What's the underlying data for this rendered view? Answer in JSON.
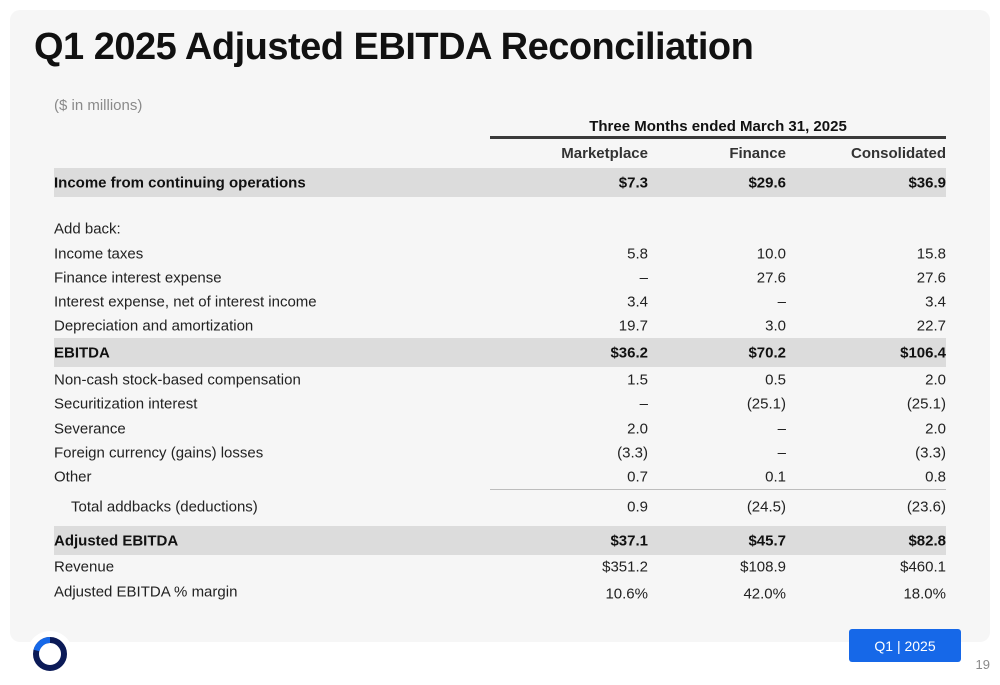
{
  "title": "Q1 2025 Adjusted EBITDA Reconciliation",
  "units": "($ in millions)",
  "period_header": "Three Months ended March 31, 2025",
  "columns": [
    "Marketplace",
    "Finance",
    "Consolidated"
  ],
  "rows": {
    "income": {
      "label": "Income from continuing operations",
      "values": [
        "$7.3",
        "$29.6",
        "$36.9"
      ]
    },
    "add_back": {
      "label": "Add back:"
    },
    "income_taxes": {
      "label": "Income taxes",
      "values": [
        "5.8",
        "10.0",
        "15.8"
      ]
    },
    "finance_interest": {
      "label": "Finance interest expense",
      "values": [
        "–",
        "27.6",
        "27.6"
      ]
    },
    "interest_expense": {
      "label": "Interest expense, net of interest income",
      "values": [
        "3.4",
        "–",
        "3.4"
      ]
    },
    "depreciation": {
      "label": "Depreciation and amortization",
      "values": [
        "19.7",
        "3.0",
        "22.7"
      ]
    },
    "ebitda": {
      "label": "EBITDA",
      "values": [
        "$36.2",
        "$70.2",
        "$106.4"
      ]
    },
    "stock_comp": {
      "label": "Non-cash stock-based compensation",
      "values": [
        "1.5",
        "0.5",
        "2.0"
      ]
    },
    "securitization": {
      "label": "Securitization interest",
      "values": [
        "–",
        "(25.1)",
        "(25.1)"
      ]
    },
    "severance": {
      "label": "Severance",
      "values": [
        "2.0",
        "–",
        "2.0"
      ]
    },
    "fx": {
      "label": "Foreign currency (gains) losses",
      "values": [
        "(3.3)",
        "–",
        "(3.3)"
      ]
    },
    "other": {
      "label": "Other",
      "values": [
        "0.7",
        "0.1",
        "0.8"
      ]
    },
    "total_addbacks": {
      "label": "Total addbacks (deductions)",
      "values": [
        "0.9",
        "(24.5)",
        "(23.6)"
      ]
    },
    "adjusted_ebitda": {
      "label": "Adjusted EBITDA",
      "values": [
        "$37.1",
        "$45.7",
        "$82.8"
      ]
    },
    "revenue": {
      "label": "Revenue",
      "values": [
        "$351.2",
        "$108.9",
        "$460.1"
      ]
    },
    "margin": {
      "label": "Adjusted EBITDA % margin",
      "values": [
        "10.6%",
        "42.0%",
        "18.0%"
      ]
    }
  },
  "footer": {
    "badge": "Q1 | 2025",
    "page_number": "19",
    "logo_icon": "ring-logo-icon",
    "brand_color": "#1668e8"
  }
}
